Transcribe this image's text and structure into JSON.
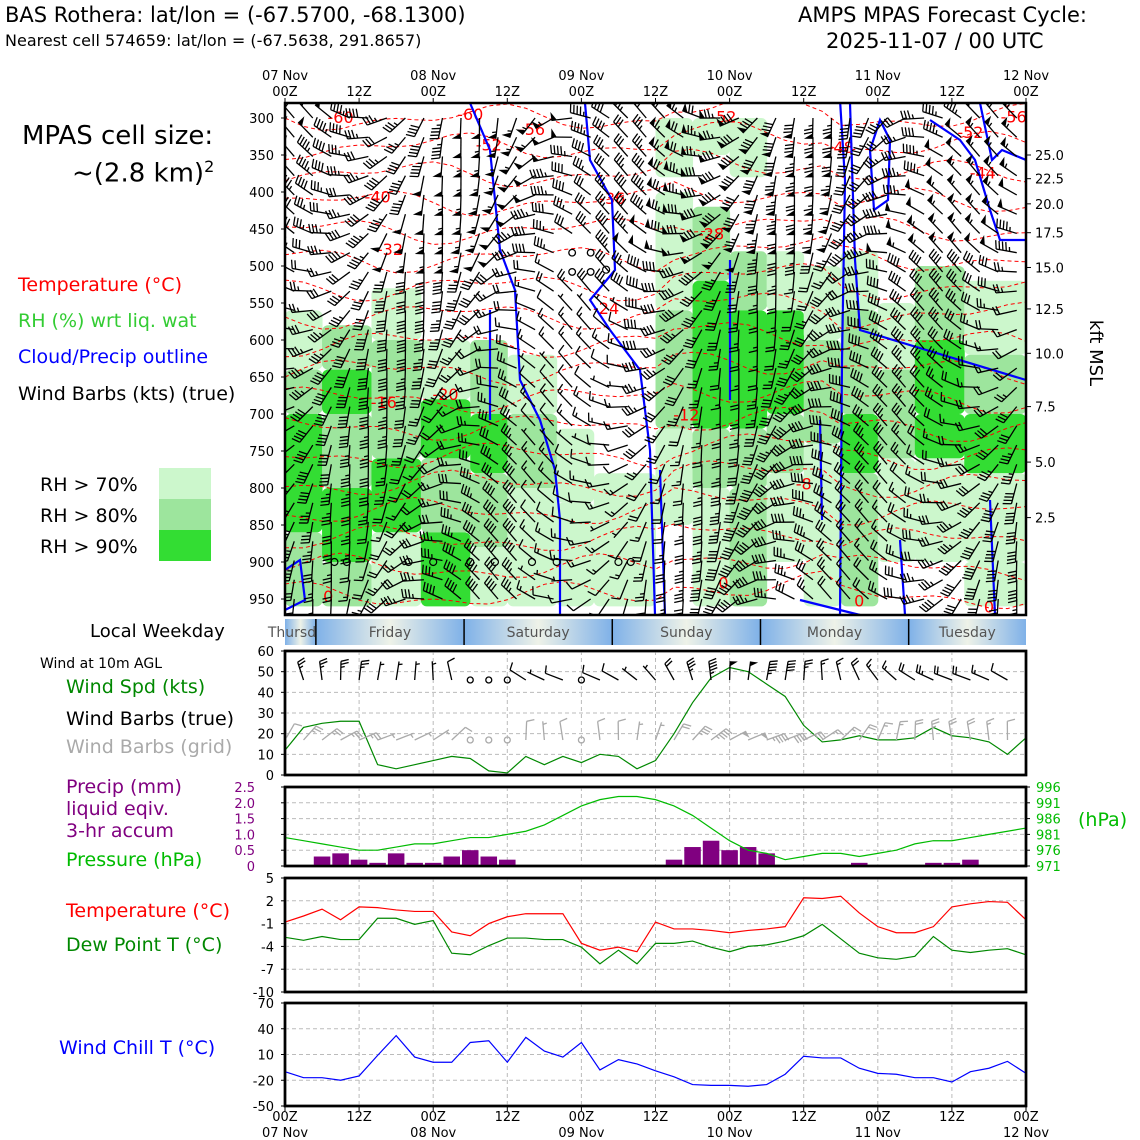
{
  "header": {
    "left_title": "BAS Rothera: lat/lon = (-67.5700, -68.1300)",
    "left_sub": "Nearest cell 574659: lat/lon = (-67.5638, 291.8657)",
    "right_title": "AMPS MPAS Forecast Cycle:",
    "right_sub": "2025-11-07 / 00 UTC"
  },
  "left_panel": {
    "cell_size_label": "MPAS cell size:",
    "cell_size_value": "~(2.8 km)",
    "cell_size_exp": "2",
    "legend_temperature": "Temperature (°C)",
    "legend_rh": "RH (%) wrt liq. wat",
    "legend_cloud": "Cloud/Precip outline",
    "legend_wind": "Wind Barbs (kts) (true)",
    "rh_70": "RH > 70%",
    "rh_80": "RH > 80%",
    "rh_90": "RH > 90%",
    "local_weekday": "Local Weekday",
    "wind_10m": "Wind at 10m AGL",
    "wind_spd": "Wind Spd (kts)",
    "wind_barbs_true": "Wind Barbs (true)",
    "wind_barbs_grid": "Wind Barbs (grid)",
    "precip_1": "Precip (mm)",
    "precip_2": "liquid eqiv.",
    "precip_3": "3-hr accum",
    "pressure": "Pressure (hPa)",
    "temp": "Temperature (°C)",
    "dewpoint": "Dew Point T (°C)",
    "windchill": "Wind Chill T (°C)",
    "kft_label": "kft MSL",
    "hpa_label": "(hPa)"
  },
  "colors": {
    "temp": "#ff0000",
    "rh_green": "#33bb33",
    "cloud": "#0000ff",
    "precip": "#800080",
    "pressure": "#00bb00",
    "dew": "#008800",
    "rh70": "#ccf7cc",
    "rh80": "#9de59d",
    "rh90": "#33dd33",
    "grid_barb": "#aaaaaa"
  },
  "chart_data": [
    {
      "type": "area",
      "title": "Time-height cross section",
      "ylabel": "Pressure (hPa)",
      "y2label": "kft MSL",
      "x_hours_range": [
        0,
        120
      ],
      "top_ticks": [
        {
          "h": 0,
          "label": "07 Nov\n00Z"
        },
        {
          "h": 12,
          "label": "12Z"
        },
        {
          "h": 24,
          "label": "08 Nov\n00Z"
        },
        {
          "h": 36,
          "label": "12Z"
        },
        {
          "h": 48,
          "label": "09 Nov\n00Z"
        },
        {
          "h": 60,
          "label": "12Z"
        },
        {
          "h": 72,
          "label": "10 Nov\n00Z"
        },
        {
          "h": 84,
          "label": "12Z"
        },
        {
          "h": 96,
          "label": "11 Nov\n00Z"
        },
        {
          "h": 108,
          "label": "12Z"
        },
        {
          "h": 120,
          "label": "12 Nov\n00Z"
        }
      ],
      "pressure_ticks": [
        300,
        350,
        400,
        450,
        500,
        550,
        600,
        650,
        700,
        750,
        800,
        850,
        900,
        950
      ],
      "kft_ticks": [
        {
          "p": 350,
          "label": "25.0"
        },
        {
          "p": 382,
          "label": "22.5"
        },
        {
          "p": 416,
          "label": "20.0"
        },
        {
          "p": 455,
          "label": "17.5"
        },
        {
          "p": 502,
          "label": "15.0"
        },
        {
          "p": 558,
          "label": "12.5"
        },
        {
          "p": 618,
          "label": "10.0"
        },
        {
          "p": 690,
          "label": "7.5"
        },
        {
          "p": 765,
          "label": "5.0"
        },
        {
          "p": 840,
          "label": "2.5"
        }
      ],
      "temperature_labels": [
        {
          "h": 9,
          "p": 307,
          "t": "-60"
        },
        {
          "h": 30,
          "p": 303,
          "t": "-60"
        },
        {
          "h": 40,
          "p": 323,
          "t": "-56"
        },
        {
          "h": 33,
          "p": 344,
          "t": "-52"
        },
        {
          "h": 71,
          "p": 306,
          "t": "-52"
        },
        {
          "h": 118,
          "p": 306,
          "t": "-56"
        },
        {
          "h": 111,
          "p": 327,
          "t": "-52"
        },
        {
          "h": 90,
          "p": 347,
          "t": "-48"
        },
        {
          "h": 113,
          "p": 382,
          "t": "-44"
        },
        {
          "h": 15,
          "p": 414,
          "t": "-40"
        },
        {
          "h": 53,
          "p": 416,
          "t": "-36"
        },
        {
          "h": 17,
          "p": 485,
          "t": "-32"
        },
        {
          "h": 69,
          "p": 464,
          "t": "-28"
        },
        {
          "h": 52,
          "p": 565,
          "t": "-24"
        },
        {
          "h": 26,
          "p": 681,
          "t": "-20"
        },
        {
          "h": 16,
          "p": 692,
          "t": "-16"
        },
        {
          "h": 65,
          "p": 709,
          "t": "-12"
        },
        {
          "h": 84,
          "p": 802,
          "t": "-8"
        },
        {
          "h": 7,
          "p": 954,
          "t": "0"
        },
        {
          "h": 71,
          "p": 936,
          "t": "0"
        },
        {
          "h": 93,
          "p": 960,
          "t": "0"
        },
        {
          "h": 114,
          "p": 968,
          "t": "0"
        }
      ]
    },
    {
      "type": "line",
      "title": "Wind at 10m AGL",
      "ylabel": "Wind Spd (kts)",
      "ylim": [
        0,
        60
      ],
      "yticks": [
        0,
        10,
        20,
        30,
        40,
        50,
        60
      ],
      "x_hours": [
        0,
        3,
        6,
        9,
        12,
        15,
        18,
        21,
        24,
        27,
        30,
        33,
        36,
        39,
        42,
        45,
        48,
        51,
        54,
        57,
        60,
        63,
        66,
        69,
        72,
        75,
        78,
        81,
        84,
        87,
        90,
        93,
        96,
        99,
        102,
        105,
        108,
        111,
        114,
        117,
        120
      ],
      "series": [
        {
          "name": "Wind Spd",
          "values": [
            12,
            23,
            25,
            26,
            26,
            5,
            3,
            5,
            7,
            9,
            8,
            2,
            1,
            9,
            5,
            9,
            6,
            10,
            9,
            3,
            7,
            20,
            35,
            47,
            52,
            50,
            44,
            38,
            24,
            16,
            17,
            19,
            17,
            17,
            18,
            23,
            19,
            18,
            16,
            10,
            18
          ]
        }
      ],
      "calm_hours": [
        30,
        33,
        48
      ]
    },
    {
      "type": "bar",
      "title": "Precip and pressure",
      "ylabel": "Precip (mm) liquid eqiv. 3-hr accum",
      "ylim": [
        0,
        2.5
      ],
      "yticks": [
        "0",
        "0.5",
        "1.0",
        "1.5",
        "2.0",
        "2.5"
      ],
      "y2label": "Pressure (hPa)",
      "y2lim": [
        971,
        996
      ],
      "y2ticks": [
        "971",
        "976",
        "981",
        "986",
        "991",
        "996"
      ],
      "x_hours": [
        3,
        6,
        9,
        12,
        15,
        18,
        21,
        24,
        27,
        30,
        33,
        36,
        39,
        42,
        45,
        48,
        51,
        54,
        57,
        60,
        63,
        66,
        69,
        72,
        75,
        78,
        81,
        84,
        87,
        90,
        93,
        96,
        99,
        102,
        105,
        108,
        111,
        114,
        117
      ],
      "series": [
        {
          "name": "Precip",
          "values": [
            0.0,
            0.3,
            0.4,
            0.2,
            0.1,
            0.4,
            0.1,
            0.1,
            0.3,
            0.5,
            0.3,
            0.2,
            0.0,
            0.0,
            0.0,
            0.0,
            0.0,
            0.0,
            0.0,
            0.0,
            0.2,
            0.6,
            0.8,
            0.5,
            0.6,
            0.4,
            0.0,
            0.0,
            0.0,
            0.0,
            0.1,
            0.0,
            0.0,
            0.0,
            0.1,
            0.1,
            0.2,
            0.0,
            0.0
          ]
        },
        {
          "name": "Pressure",
          "x_hours": [
            0,
            3,
            6,
            9,
            12,
            15,
            18,
            21,
            24,
            27,
            30,
            33,
            36,
            39,
            42,
            45,
            48,
            51,
            54,
            57,
            60,
            63,
            66,
            69,
            72,
            75,
            78,
            81,
            84,
            87,
            90,
            93,
            96,
            99,
            102,
            105,
            108,
            111,
            114,
            117,
            120
          ],
          "values": [
            980,
            979,
            978,
            977,
            976,
            976,
            977,
            978,
            978,
            979,
            980,
            980,
            981,
            982,
            984,
            987,
            990,
            992,
            993,
            993,
            992,
            990,
            987,
            983,
            979,
            976,
            975,
            973,
            974,
            975,
            975,
            974,
            975,
            976,
            978,
            979,
            979,
            980,
            981,
            982,
            983
          ]
        }
      ]
    },
    {
      "type": "line",
      "title": "Temperature and dew point",
      "ylim": [
        -10,
        5
      ],
      "yticks": [
        "-10",
        "-7",
        "-4",
        "-1",
        "2",
        "5"
      ],
      "x_hours": [
        0,
        3,
        6,
        9,
        12,
        15,
        18,
        21,
        24,
        27,
        30,
        33,
        36,
        39,
        42,
        45,
        48,
        51,
        54,
        57,
        60,
        63,
        66,
        69,
        72,
        75,
        78,
        81,
        84,
        87,
        90,
        93,
        96,
        99,
        102,
        105,
        108,
        111,
        114,
        117,
        120
      ],
      "series": [
        {
          "name": "Temperature",
          "values": [
            -0.8,
            0,
            0.9,
            -0.5,
            1.2,
            1.1,
            0.8,
            0.6,
            0.6,
            -2.1,
            -2.6,
            -1,
            -0.1,
            0.3,
            0.3,
            0.3,
            -3.6,
            -4.5,
            -4.1,
            -4.7,
            -0.8,
            -1.7,
            -1.7,
            -1.9,
            -2.2,
            -1.9,
            -1.7,
            -1.4,
            2.4,
            2.3,
            2.6,
            0.4,
            -1.4,
            -2.2,
            -2.2,
            -1.4,
            1.2,
            1.6,
            1.9,
            1.8,
            -0.5
          ]
        },
        {
          "name": "Dew Point",
          "values": [
            -2.8,
            -3.2,
            -2.7,
            -3.1,
            -3.1,
            -0.3,
            -0.3,
            -1.1,
            -0.6,
            -4.9,
            -5.1,
            -3.9,
            -2.9,
            -2.9,
            -3.1,
            -3.1,
            -4.1,
            -6.3,
            -4.5,
            -6.3,
            -3.6,
            -3.6,
            -3.3,
            -4.1,
            -4.7,
            -4,
            -3.8,
            -3.3,
            -2.6,
            -1.1,
            -3,
            -4.9,
            -5.5,
            -5.7,
            -5.3,
            -2.7,
            -4.5,
            -4.8,
            -4.5,
            -4.3,
            -5.1
          ]
        }
      ]
    },
    {
      "type": "line",
      "title": "Wind chill",
      "ylabel": "Wind Chill T (°C)",
      "ylim": [
        -50,
        70
      ],
      "yticks": [
        "-50",
        "-20",
        "10",
        "40",
        "70"
      ],
      "x_hours": [
        0,
        3,
        6,
        9,
        12,
        15,
        18,
        21,
        24,
        27,
        30,
        33,
        36,
        39,
        42,
        45,
        48,
        51,
        54,
        57,
        60,
        63,
        66,
        69,
        72,
        75,
        78,
        81,
        84,
        87,
        90,
        93,
        96,
        99,
        102,
        105,
        108,
        111,
        114,
        117,
        120
      ],
      "series": [
        {
          "name": "Wind Chill",
          "values": [
            -10,
            -17,
            -17,
            -20,
            -15,
            9,
            32,
            7,
            1,
            1,
            24,
            26,
            1,
            30,
            14,
            7,
            24,
            -8,
            4,
            -1,
            -9,
            -16,
            -25,
            -26,
            -26,
            -27,
            -25,
            -13,
            8,
            6,
            6,
            -6,
            -12,
            -13,
            -17,
            -17,
            -22,
            -10,
            -6,
            2,
            -12
          ]
        }
      ]
    },
    {
      "type": "table",
      "title": "Local weekday strip",
      "days": [
        {
          "h0": 0,
          "h1": 5,
          "label": "Thursday"
        },
        {
          "h0": 5,
          "h1": 29,
          "label": "Friday"
        },
        {
          "h0": 29,
          "h1": 53,
          "label": "Saturday"
        },
        {
          "h0": 53,
          "h1": 77,
          "label": "Sunday"
        },
        {
          "h0": 77,
          "h1": 101,
          "label": "Monday"
        },
        {
          "h0": 101,
          "h1": 120,
          "label": "Tuesday"
        }
      ],
      "bottom_ticks": [
        {
          "h": 0,
          "label": "00Z\n07 Nov"
        },
        {
          "h": 12,
          "label": "12Z"
        },
        {
          "h": 24,
          "label": "00Z\n08 Nov"
        },
        {
          "h": 36,
          "label": "12Z"
        },
        {
          "h": 48,
          "label": "00Z\n09 Nov"
        },
        {
          "h": 60,
          "label": "12Z"
        },
        {
          "h": 72,
          "label": "00Z\n10 Nov"
        },
        {
          "h": 84,
          "label": "12Z"
        },
        {
          "h": 96,
          "label": "00Z\n11 Nov"
        },
        {
          "h": 108,
          "label": "12Z"
        },
        {
          "h": 120,
          "label": "00Z\n12 Nov"
        }
      ]
    }
  ]
}
